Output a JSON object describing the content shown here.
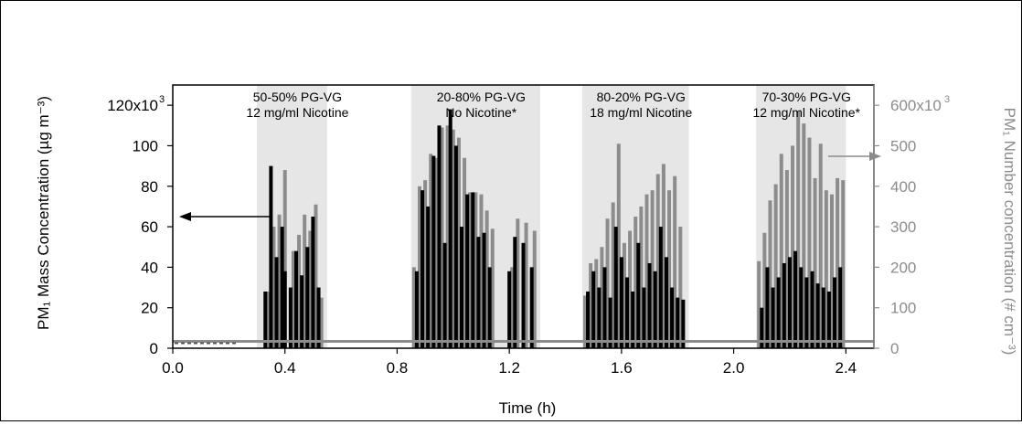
{
  "chart_data": {
    "type": "bar",
    "xlabel": "Time (h)",
    "ylabel_left": "PM₁ Mass Concentration (µg m⁻³)",
    "ylabel_right": "PM₁ Number concentration (# cm⁻³)",
    "xlim": [
      0.0,
      2.5
    ],
    "ylim_left": [
      0,
      130000
    ],
    "ylim_right": [
      0,
      650000
    ],
    "x_ticks": [
      "0.0",
      "0.4",
      "0.8",
      "1.2",
      "1.6",
      "2.0",
      "2.4"
    ],
    "y_ticks_left": [
      "0",
      "20",
      "40",
      "60",
      "80",
      "100",
      "120x10"
    ],
    "y_ticks_right": [
      "0",
      "100",
      "200",
      "300",
      "400",
      "500",
      "600x10"
    ],
    "tick_exponent": "3",
    "colors": {
      "mass": "#000000",
      "number": "#8c8c8c",
      "shade": "#e6e6e6"
    },
    "regions": [
      {
        "x0": 0.3,
        "x1": 0.55,
        "label_line1": "50-50% PG-VG",
        "label_line2": "12 mg/ml Nicotine"
      },
      {
        "x0": 0.85,
        "x1": 1.31,
        "label_line1": "20-80% PG-VG",
        "label_line2": "No Nicotine*"
      },
      {
        "x0": 1.46,
        "x1": 1.84,
        "label_line1": "80-20% PG-VG",
        "label_line2": "18 mg/ml Nicotine"
      },
      {
        "x0": 2.08,
        "x1": 2.4,
        "label_line1": "70-30% PG-VG",
        "label_line2": "12 mg/ml Nicotine*"
      }
    ],
    "baseline": {
      "mass": 2500,
      "number": 17000
    },
    "series": [
      {
        "name": "PM₁ Mass Concentration",
        "axis": "left",
        "points": [
          [
            0.33,
            28000
          ],
          [
            0.35,
            90000
          ],
          [
            0.37,
            45000
          ],
          [
            0.39,
            60000
          ],
          [
            0.4,
            38000
          ],
          [
            0.42,
            30000
          ],
          [
            0.44,
            48000
          ],
          [
            0.46,
            36000
          ],
          [
            0.48,
            50000
          ],
          [
            0.5,
            65000
          ],
          [
            0.52,
            30000
          ],
          [
            0.87,
            38000
          ],
          [
            0.89,
            78000
          ],
          [
            0.91,
            70000
          ],
          [
            0.93,
            95000
          ],
          [
            0.95,
            110000
          ],
          [
            0.97,
            52000
          ],
          [
            0.99,
            118000
          ],
          [
            1.01,
            100000
          ],
          [
            1.03,
            60000
          ],
          [
            1.05,
            76000
          ],
          [
            1.07,
            77000
          ],
          [
            1.09,
            55000
          ],
          [
            1.11,
            57000
          ],
          [
            1.13,
            40000
          ],
          [
            1.2,
            38000
          ],
          [
            1.22,
            55000
          ],
          [
            1.25,
            52000
          ],
          [
            1.28,
            40000
          ],
          [
            1.48,
            28000
          ],
          [
            1.5,
            38000
          ],
          [
            1.52,
            30000
          ],
          [
            1.54,
            40000
          ],
          [
            1.56,
            25000
          ],
          [
            1.58,
            60000
          ],
          [
            1.6,
            45000
          ],
          [
            1.62,
            35000
          ],
          [
            1.64,
            28000
          ],
          [
            1.66,
            52000
          ],
          [
            1.68,
            30000
          ],
          [
            1.7,
            42000
          ],
          [
            1.72,
            38000
          ],
          [
            1.74,
            60000
          ],
          [
            1.76,
            45000
          ],
          [
            1.78,
            30000
          ],
          [
            1.8,
            25000
          ],
          [
            1.82,
            24000
          ],
          [
            2.1,
            20000
          ],
          [
            2.12,
            40000
          ],
          [
            2.14,
            30000
          ],
          [
            2.16,
            35000
          ],
          [
            2.18,
            42000
          ],
          [
            2.2,
            45000
          ],
          [
            2.22,
            48000
          ],
          [
            2.24,
            40000
          ],
          [
            2.26,
            35000
          ],
          [
            2.28,
            38000
          ],
          [
            2.3,
            32000
          ],
          [
            2.32,
            30000
          ],
          [
            2.34,
            28000
          ],
          [
            2.36,
            35000
          ],
          [
            2.38,
            40000
          ]
        ]
      },
      {
        "name": "PM₁ Number concentration",
        "axis": "right",
        "points": [
          [
            0.34,
            140000
          ],
          [
            0.36,
            300000
          ],
          [
            0.38,
            330000
          ],
          [
            0.4,
            440000
          ],
          [
            0.43,
            240000
          ],
          [
            0.45,
            280000
          ],
          [
            0.47,
            330000
          ],
          [
            0.49,
            290000
          ],
          [
            0.51,
            355000
          ],
          [
            0.53,
            125000
          ],
          [
            0.86,
            200000
          ],
          [
            0.88,
            400000
          ],
          [
            0.9,
            415000
          ],
          [
            0.92,
            480000
          ],
          [
            0.94,
            470000
          ],
          [
            0.96,
            545000
          ],
          [
            0.98,
            550000
          ],
          [
            1.0,
            540000
          ],
          [
            1.02,
            520000
          ],
          [
            1.04,
            470000
          ],
          [
            1.06,
            385000
          ],
          [
            1.08,
            385000
          ],
          [
            1.1,
            380000
          ],
          [
            1.12,
            340000
          ],
          [
            1.14,
            295000
          ],
          [
            1.21,
            200000
          ],
          [
            1.23,
            320000
          ],
          [
            1.26,
            310000
          ],
          [
            1.29,
            290000
          ],
          [
            1.47,
            130000
          ],
          [
            1.49,
            210000
          ],
          [
            1.51,
            220000
          ],
          [
            1.53,
            250000
          ],
          [
            1.55,
            320000
          ],
          [
            1.57,
            360000
          ],
          [
            1.59,
            505000
          ],
          [
            1.61,
            260000
          ],
          [
            1.63,
            290000
          ],
          [
            1.65,
            325000
          ],
          [
            1.67,
            350000
          ],
          [
            1.69,
            380000
          ],
          [
            1.71,
            390000
          ],
          [
            1.73,
            430000
          ],
          [
            1.75,
            455000
          ],
          [
            1.77,
            390000
          ],
          [
            1.79,
            425000
          ],
          [
            1.81,
            300000
          ],
          [
            2.09,
            215000
          ],
          [
            2.11,
            285000
          ],
          [
            2.13,
            365000
          ],
          [
            2.15,
            405000
          ],
          [
            2.17,
            480000
          ],
          [
            2.19,
            440000
          ],
          [
            2.21,
            500000
          ],
          [
            2.23,
            585000
          ],
          [
            2.25,
            555000
          ],
          [
            2.27,
            520000
          ],
          [
            2.29,
            420000
          ],
          [
            2.31,
            505000
          ],
          [
            2.33,
            390000
          ],
          [
            2.35,
            380000
          ],
          [
            2.37,
            420000
          ],
          [
            2.39,
            415000
          ]
        ]
      }
    ]
  }
}
